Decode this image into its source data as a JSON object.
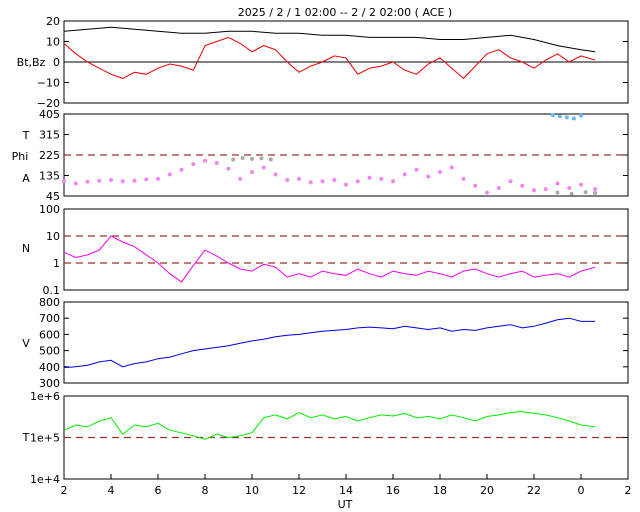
{
  "title": "2025 /  2 /  1   02:00 -- 2 /  2   02:00 ( ACE )",
  "xlabel": "UT",
  "x_ticks": [
    "2",
    "4",
    "6",
    "8",
    "10",
    "12",
    "14",
    "16",
    "18",
    "20",
    "22",
    "0",
    "2"
  ],
  "colors": {
    "bt": "#000000",
    "bz": "#ee0000",
    "temp": "#66bbff",
    "phi": "#aaaaaa",
    "angle": "#ee88ee",
    "density": "#ee00ee",
    "speed": "#0000dd",
    "ptemp": "#00ee00",
    "ref": "#993333"
  },
  "chart_data": [
    {
      "type": "line",
      "ylabel": "Bt,Bz",
      "y_ticks": [
        "20",
        "10",
        "0",
        "−10",
        "−20"
      ],
      "ylim": [
        -20,
        20
      ],
      "zero_line": true,
      "series": [
        {
          "name": "Bt",
          "color_key": "bt",
          "x": [
            0,
            1,
            2,
            3,
            4,
            5,
            6,
            7,
            8,
            9,
            10,
            11,
            12,
            13,
            14,
            15,
            16,
            17,
            18,
            19,
            20,
            21,
            22,
            22.6
          ],
          "y": [
            15,
            16,
            17,
            16,
            15,
            14,
            14,
            15,
            15,
            14,
            14,
            13,
            13,
            12,
            12,
            12,
            11,
            11,
            12,
            13,
            11,
            8,
            6,
            5
          ]
        },
        {
          "name": "Bz",
          "color_key": "bz",
          "x": [
            0,
            0.5,
            1,
            1.5,
            2,
            2.5,
            3,
            3.5,
            4,
            4.5,
            5,
            5.5,
            6,
            6.5,
            7,
            7.5,
            8,
            8.5,
            9,
            9.5,
            10,
            10.5,
            11,
            11.5,
            12,
            12.5,
            13,
            13.5,
            14,
            14.5,
            15,
            15.5,
            16,
            16.5,
            17,
            17.5,
            18,
            18.5,
            19,
            19.5,
            20,
            20.5,
            21,
            21.5,
            22,
            22.6
          ],
          "y": [
            9,
            4,
            0,
            -3,
            -6,
            -8,
            -5,
            -6,
            -3,
            -1,
            -2,
            -4,
            8,
            10,
            12,
            9,
            5,
            8,
            6,
            0,
            -5,
            -2,
            0,
            3,
            2,
            -6,
            -3,
            -2,
            0,
            -4,
            -6,
            -1,
            2,
            -3,
            -8,
            -2,
            4,
            6,
            2,
            0,
            -3,
            1,
            4,
            0,
            3,
            1
          ]
        }
      ]
    },
    {
      "type": "scatter",
      "ylabel_lines": [
        "T",
        "Phi",
        "A"
      ],
      "y_ticks": [
        "405",
        "315",
        "225",
        "135",
        "45"
      ],
      "ylim": [
        45,
        405
      ],
      "ref_lines": [
        225
      ],
      "series": [
        {
          "name": "Angle",
          "color_key": "angle",
          "x": [
            0,
            0.5,
            1,
            1.5,
            2,
            2.5,
            3,
            3.5,
            4,
            4.5,
            5,
            5.5,
            6,
            6.5,
            7,
            7.5,
            8,
            8.5,
            9,
            9.5,
            10,
            10.5,
            11,
            11.5,
            12,
            12.5,
            13,
            13.5,
            14,
            14.5,
            15,
            15.5,
            16,
            16.5,
            17,
            17.5,
            18,
            18.5,
            19,
            19.5,
            20,
            20.5,
            21,
            21.5,
            22,
            22.6
          ],
          "y": [
            110,
            100,
            108,
            112,
            115,
            110,
            112,
            118,
            120,
            140,
            160,
            185,
            200,
            190,
            165,
            120,
            150,
            170,
            140,
            115,
            120,
            105,
            110,
            115,
            95,
            110,
            125,
            120,
            110,
            140,
            160,
            130,
            150,
            170,
            120,
            90,
            60,
            80,
            110,
            90,
            70,
            75,
            100,
            80,
            95,
            75
          ]
        },
        {
          "name": "Phi",
          "color_key": "phi",
          "x": [
            7.2,
            7.6,
            8.0,
            8.4,
            8.8,
            21.0,
            21.6,
            22.2,
            22.6
          ],
          "y": [
            205,
            212,
            208,
            210,
            206,
            60,
            55,
            62,
            58
          ]
        },
        {
          "name": "T",
          "color_key": "temp",
          "x": [
            20.8,
            21.1,
            21.4,
            21.7,
            22.0
          ],
          "y": [
            400,
            395,
            390,
            385,
            398
          ]
        }
      ]
    },
    {
      "type": "line",
      "ylabel": "N",
      "y_ticks": [
        "100",
        "10",
        "1",
        "0.1"
      ],
      "ylim": [
        0.1,
        100
      ],
      "scale": "log",
      "ref_lines": [
        10,
        1
      ],
      "series": [
        {
          "name": "N",
          "color_key": "density",
          "x": [
            0,
            0.5,
            1,
            1.5,
            2,
            2.5,
            3,
            3.5,
            4,
            4.5,
            5,
            5.5,
            6,
            6.5,
            7,
            7.5,
            8,
            8.5,
            9,
            9.5,
            10,
            10.5,
            11,
            11.5,
            12,
            12.5,
            13,
            13.5,
            14,
            14.5,
            15,
            15.5,
            16,
            16.5,
            17,
            17.5,
            18,
            18.5,
            19,
            19.5,
            20,
            20.5,
            21,
            21.5,
            22,
            22.6
          ],
          "y": [
            2.5,
            1.6,
            2.0,
            3.0,
            10,
            6.0,
            4.0,
            2.0,
            1.0,
            0.4,
            0.2,
            0.8,
            3.0,
            1.8,
            1.0,
            0.6,
            0.5,
            0.9,
            0.7,
            0.3,
            0.4,
            0.3,
            0.5,
            0.4,
            0.35,
            0.6,
            0.4,
            0.3,
            0.5,
            0.4,
            0.35,
            0.5,
            0.4,
            0.3,
            0.5,
            0.6,
            0.4,
            0.3,
            0.4,
            0.5,
            0.3,
            0.35,
            0.4,
            0.3,
            0.5,
            0.7
          ]
        }
      ]
    },
    {
      "type": "line",
      "ylabel": "V",
      "y_ticks": [
        "800",
        "700",
        "600",
        "500",
        "400",
        "300"
      ],
      "ylim": [
        300,
        800
      ],
      "series": [
        {
          "name": "V",
          "color_key": "speed",
          "x": [
            0,
            0.5,
            1,
            1.5,
            2,
            2.5,
            3,
            3.5,
            4,
            4.5,
            5,
            5.5,
            6,
            6.5,
            7,
            7.5,
            8,
            8.5,
            9,
            9.5,
            10,
            10.5,
            11,
            11.5,
            12,
            12.5,
            13,
            13.5,
            14,
            14.5,
            15,
            15.5,
            16,
            16.5,
            17,
            17.5,
            18,
            18.5,
            19,
            19.5,
            20,
            20.5,
            21,
            21.5,
            22,
            22.6
          ],
          "y": [
            395,
            400,
            410,
            430,
            440,
            400,
            420,
            430,
            450,
            460,
            480,
            500,
            510,
            520,
            530,
            545,
            560,
            570,
            585,
            595,
            600,
            610,
            620,
            625,
            630,
            640,
            645,
            640,
            635,
            650,
            640,
            630,
            640,
            620,
            630,
            625,
            640,
            650,
            660,
            640,
            650,
            670,
            690,
            700,
            680,
            680
          ]
        }
      ]
    },
    {
      "type": "line",
      "ylabel": "T",
      "y_ticks": [
        "1e+6",
        "1e+5",
        "1e+4"
      ],
      "ylim": [
        10000,
        1000000
      ],
      "scale": "log",
      "ref_lines": [
        100000
      ],
      "series": [
        {
          "name": "T",
          "color_key": "ptemp",
          "x": [
            0,
            0.5,
            1,
            1.5,
            2,
            2.5,
            3,
            3.5,
            4,
            4.5,
            5,
            5.5,
            6,
            6.5,
            7,
            7.5,
            8,
            8.5,
            9,
            9.5,
            10,
            10.5,
            11,
            11.5,
            12,
            12.5,
            13,
            13.5,
            14,
            14.5,
            15,
            15.5,
            16,
            16.5,
            17,
            17.5,
            18,
            18.5,
            19,
            19.5,
            20,
            20.5,
            21,
            21.5,
            22,
            22.6
          ],
          "y": [
            150000,
            200000,
            180000,
            250000,
            300000,
            120000,
            200000,
            180000,
            220000,
            150000,
            130000,
            110000,
            90000,
            120000,
            100000,
            110000,
            130000,
            300000,
            350000,
            280000,
            400000,
            300000,
            350000,
            280000,
            320000,
            250000,
            300000,
            350000,
            330000,
            380000,
            300000,
            320000,
            280000,
            350000,
            300000,
            250000,
            320000,
            350000,
            400000,
            420000,
            380000,
            350000,
            300000,
            250000,
            200000,
            180000
          ]
        }
      ]
    }
  ]
}
